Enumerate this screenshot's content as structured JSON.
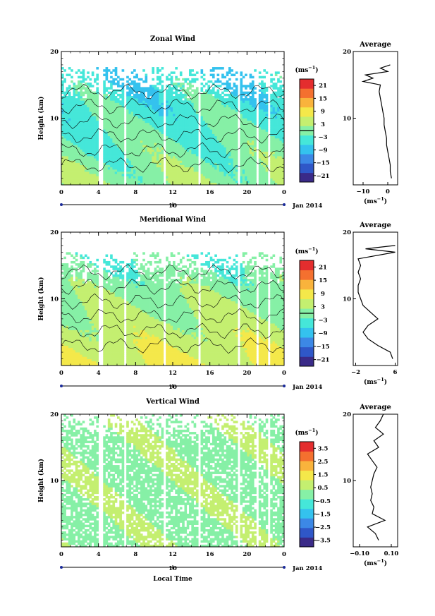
{
  "colors": {
    "colormap": [
      "#3a2a88",
      "#2f57c8",
      "#3c88e6",
      "#34c2ee",
      "#45e7d9",
      "#86f0a6",
      "#c4ef70",
      "#f4e84a",
      "#f9b33c",
      "#f4702f",
      "#e42d2e"
    ],
    "axis": "#000000",
    "contour": "#000000"
  },
  "x_axis": {
    "ticks": [
      "0",
      "4",
      "8",
      "12",
      "16",
      "20",
      "0"
    ],
    "date_mark": "10",
    "date_label": "Jan 2014",
    "xlabel": "Local Time"
  },
  "avg_label": "Average",
  "units_label": "(ms",
  "units_sup": "−1",
  "units_close": ")",
  "chart_data": [
    {
      "type": "heatmap",
      "title": "Zonal Wind",
      "ylabel": "Height (km)",
      "y_ticks": [
        "20",
        "10"
      ],
      "ylim": [
        0,
        20
      ],
      "xlim": [
        0,
        24
      ],
      "colorbar": {
        "ticks": [
          "21",
          "15",
          "9",
          "3",
          "−3",
          "−9",
          "−15",
          "−21"
        ],
        "range": [
          -24,
          24
        ],
        "zero_line": true
      },
      "fields": {
        "base": 1.5,
        "grad": -0.45,
        "amp": 4,
        "top": 17.5
      },
      "average_profile": {
        "title": "Average",
        "xlabel": "(ms⁻¹)",
        "x_ticks": [
          "−10",
          "0"
        ],
        "xlim": [
          -14,
          4
        ],
        "y_ticks": [
          "20",
          "10"
        ],
        "heights": [
          1,
          2,
          3,
          4,
          5,
          6,
          7,
          8,
          9,
          10,
          11,
          12,
          13,
          14,
          15,
          15.5,
          16,
          16.5,
          17,
          17.5,
          18
        ],
        "values": [
          1.5,
          1.0,
          1.0,
          0.5,
          0.0,
          -0.5,
          -0.5,
          -1.0,
          -1.5,
          -1.5,
          -2.0,
          -2.5,
          -3.0,
          -3.5,
          -3.0,
          -10.0,
          -6.0,
          -9.0,
          0.0,
          -3.0,
          1.0
        ]
      }
    },
    {
      "type": "heatmap",
      "title": "Meridional Wind",
      "ylabel": "Height (km)",
      "y_ticks": [
        "20",
        "10"
      ],
      "ylim": [
        0,
        20
      ],
      "xlim": [
        0,
        24
      ],
      "colorbar": {
        "ticks": [
          "21",
          "15",
          "9",
          "3",
          "−3",
          "−9",
          "−15",
          "−21"
        ],
        "range": [
          -24,
          24
        ],
        "zero_line": true
      },
      "fields": {
        "base": 7,
        "grad": -0.55,
        "amp": 3,
        "top": 17
      },
      "average_profile": {
        "title": "Average",
        "xlabel": "(ms⁻¹)",
        "x_ticks": [
          "−2",
          "6"
        ],
        "xlim": [
          -2.5,
          6.5
        ],
        "y_ticks": [
          "20",
          "10"
        ],
        "heights": [
          1,
          2,
          3,
          4,
          5,
          6,
          7,
          8,
          9,
          10,
          11,
          12,
          13,
          14,
          15,
          16,
          17,
          17.5,
          18
        ],
        "values": [
          5.5,
          5.0,
          2.5,
          0.5,
          -0.5,
          0.5,
          2.5,
          1.0,
          -0.5,
          -1.0,
          -1.5,
          -1.5,
          -1.0,
          -1.5,
          -1.0,
          -1.5,
          6.0,
          0.0,
          6.0
        ]
      }
    },
    {
      "type": "heatmap",
      "title": "Vertical Wind",
      "ylabel": "Height (km)",
      "y_ticks": [
        "20",
        "10"
      ],
      "ylim": [
        0,
        20
      ],
      "xlim": [
        0,
        24
      ],
      "colorbar": {
        "ticks": [
          "3.5",
          "2.5",
          "1.5",
          "0.5",
          "−0.5",
          "−1.5",
          "−2.5",
          "−3.5"
        ],
        "range": [
          -4,
          4
        ],
        "zero_line": false
      },
      "fields": {
        "base": 0.2,
        "grad": 0,
        "amp": 0.4,
        "top": 20
      },
      "average_profile": {
        "title": "Average",
        "xlabel": "(ms⁻¹)",
        "x_ticks": [
          "−0.10",
          "0.10"
        ],
        "xlim": [
          -0.14,
          0.14
        ],
        "y_ticks": [
          "20",
          "10"
        ],
        "heights": [
          1,
          2,
          3,
          4,
          5,
          6,
          7,
          8,
          9,
          10,
          11,
          12,
          13,
          14,
          15,
          16,
          17,
          18,
          19,
          20
        ],
        "values": [
          0.02,
          0.0,
          -0.05,
          0.06,
          -0.02,
          -0.01,
          -0.03,
          -0.02,
          -0.03,
          -0.02,
          -0.01,
          0.01,
          -0.02,
          -0.05,
          0.02,
          -0.01,
          0.05,
          0.0,
          0.03,
          0.05
        ]
      }
    }
  ]
}
